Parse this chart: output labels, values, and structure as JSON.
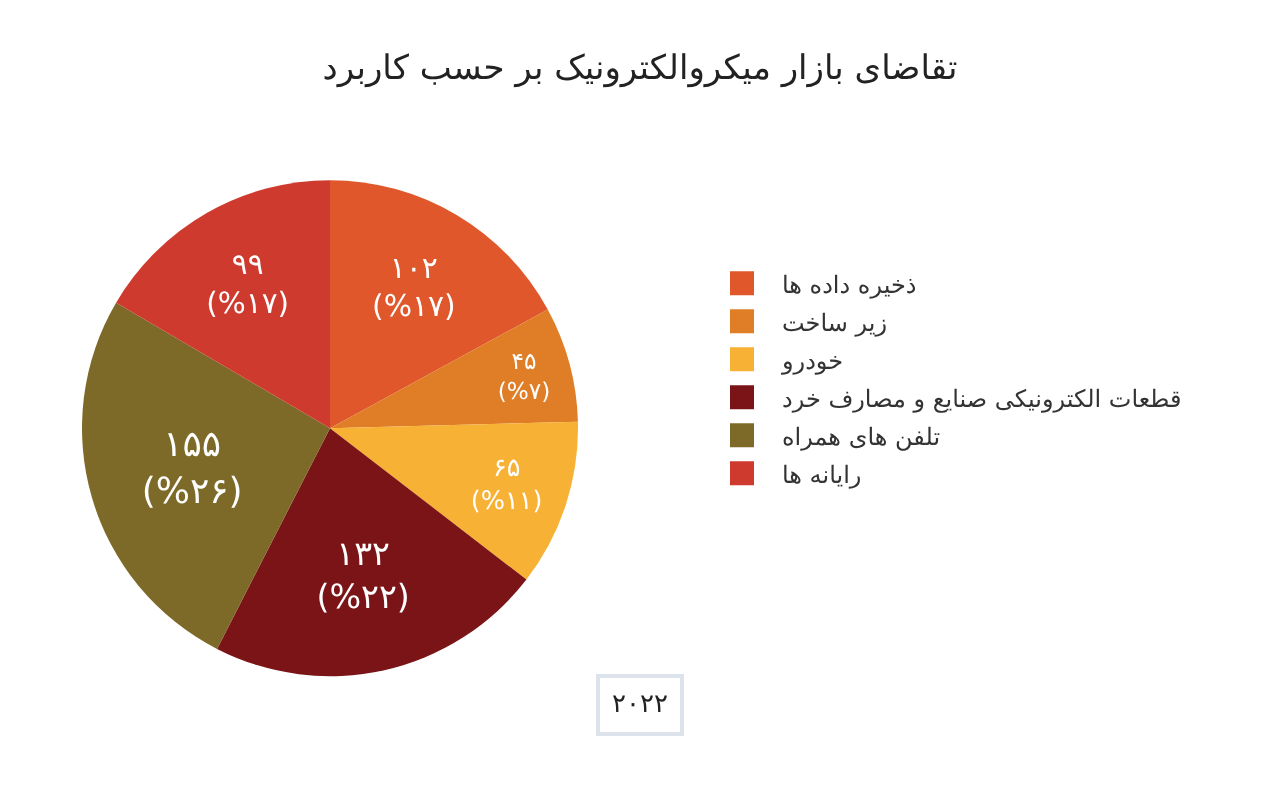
{
  "chart_data": {
    "type": "pie",
    "title": "تقاضای بازار میکروالکترونیک بر حسب کاربرد",
    "categories": [
      "ذخیره داده ها",
      "زیر ساخت",
      "خودرو",
      "قطعات الکترونیکی صنایع و مصارف خرد",
      "تلفن های همراه",
      "رایانه ها"
    ],
    "values": [
      102,
      45,
      65,
      132,
      155,
      99
    ],
    "colors": [
      "#e0572b",
      "#e07d27",
      "#f7b135",
      "#7a1417",
      "#7d6a28",
      "#cf3a2e"
    ],
    "value_labels": [
      "۱۰۲\n(%۱۷)",
      "۴۵\n(%۷)",
      "۶۵\n(%۱۱)",
      "۱۳۲\n(%۲۲)",
      "۱۵۵\n(%۲۶)",
      "۹۹\n(%۱۷)"
    ],
    "legend": "right",
    "annotations": [
      "۲۰۲۲"
    ]
  }
}
